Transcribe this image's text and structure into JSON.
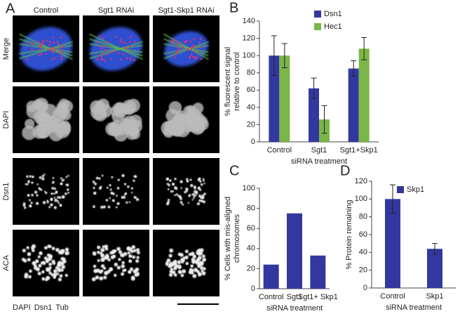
{
  "panel_a": {
    "label": "A",
    "columns": [
      "Control",
      "Sgt1 RNAi",
      "Sgt1-Skp1 RNAi"
    ],
    "rows": [
      "Merge",
      "DAPI",
      "Dsn1",
      "ACA"
    ],
    "legend": [
      {
        "text": "DAPI",
        "color": "#3a6fd8"
      },
      {
        "text": "Dsn1",
        "color": "#e0306a"
      },
      {
        "text": "Tub",
        "color": "#7ab648"
      }
    ]
  },
  "chart_data": [
    {
      "type": "bar",
      "panel_label": "B",
      "ylabel": [
        "% fluorescent signal",
        "relative to control"
      ],
      "xlabel": "siRNA treatment",
      "categories": [
        "Control",
        "Sgt1",
        "Sgt1+Skp1"
      ],
      "series": [
        {
          "name": "Dsn1",
          "color": "#3338a0",
          "values": [
            100,
            62,
            85
          ],
          "errors": [
            23,
            12,
            9
          ]
        },
        {
          "name": "Hec1",
          "color": "#7ab648",
          "values": [
            100,
            26,
            108
          ],
          "errors": [
            14,
            16,
            13
          ]
        }
      ],
      "ylim": [
        0,
        140
      ],
      "yticks": [
        0,
        20,
        40,
        60,
        80,
        100,
        120,
        140
      ]
    },
    {
      "type": "bar",
      "panel_label": "C",
      "ylabel": [
        "% Cells with mis-aligned",
        "chromosomes"
      ],
      "xlabel": "siRNA treatment",
      "categories": [
        "Control",
        "Sgt1",
        "Sgt1+ Skp1"
      ],
      "values": [
        24,
        75,
        33
      ],
      "color": "#3338a0",
      "ylim": [
        0,
        100
      ],
      "yticks": [
        0,
        20,
        40,
        60,
        80,
        100
      ]
    },
    {
      "type": "bar",
      "panel_label": "D",
      "ylabel": [
        "% Protein remaining"
      ],
      "xlabel": "siRNA treatment",
      "categories": [
        "Control",
        "Skp1"
      ],
      "series": [
        {
          "name": "Skp1",
          "color": "#3338a0",
          "values": [
            100,
            44
          ],
          "errors": [
            16,
            6
          ]
        }
      ],
      "ylim": [
        0,
        120
      ],
      "yticks": [
        0,
        20,
        40,
        60,
        80,
        100,
        120
      ]
    }
  ]
}
